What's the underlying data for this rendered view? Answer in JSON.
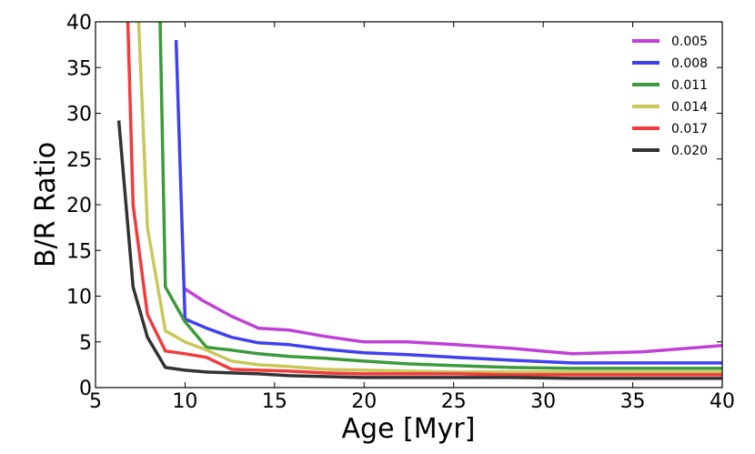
{
  "chart_data": {
    "type": "line",
    "title": "",
    "xlabel": "Age [Myr]",
    "ylabel": "B/R Ratio",
    "xlim": [
      5,
      40
    ],
    "ylim": [
      0,
      40
    ],
    "xticks": [
      5,
      10,
      15,
      20,
      25,
      30,
      35,
      40
    ],
    "yticks": [
      0,
      5,
      10,
      15,
      20,
      25,
      30,
      35,
      40
    ],
    "grid": false,
    "legend_position": "top-right",
    "series": [
      {
        "name": "0.005",
        "color": "#c040d8",
        "points": [
          [
            10,
            10.8
          ],
          [
            11,
            9.5
          ],
          [
            12.6,
            7.8
          ],
          [
            14.1,
            6.5
          ],
          [
            15.8,
            6.3
          ],
          [
            17.8,
            5.6
          ],
          [
            20,
            5.0
          ],
          [
            22.4,
            5.0
          ],
          [
            25.1,
            4.7
          ],
          [
            28.2,
            4.3
          ],
          [
            31.6,
            3.7
          ],
          [
            35.5,
            3.9
          ],
          [
            40,
            4.6
          ]
        ]
      },
      {
        "name": "0.008",
        "color": "#4040f0",
        "points": [
          [
            9.5,
            38
          ],
          [
            10,
            7.5
          ],
          [
            11.2,
            6.5
          ],
          [
            12.6,
            5.5
          ],
          [
            14.1,
            4.9
          ],
          [
            15.8,
            4.7
          ],
          [
            17.8,
            4.2
          ],
          [
            20,
            3.8
          ],
          [
            22.4,
            3.6
          ],
          [
            25.1,
            3.3
          ],
          [
            28.2,
            3.0
          ],
          [
            31.6,
            2.7
          ],
          [
            35.5,
            2.7
          ],
          [
            40,
            2.7
          ]
        ]
      },
      {
        "name": "0.011",
        "color": "#3c9a3c",
        "points": [
          [
            8.6,
            40.5
          ],
          [
            8.9,
            11
          ],
          [
            10,
            7.2
          ],
          [
            11.2,
            4.4
          ],
          [
            12.6,
            4.1
          ],
          [
            14.1,
            3.7
          ],
          [
            15.8,
            3.4
          ],
          [
            17.8,
            3.2
          ],
          [
            20,
            2.9
          ],
          [
            22.4,
            2.6
          ],
          [
            25.1,
            2.4
          ],
          [
            28.2,
            2.2
          ],
          [
            31.6,
            2.1
          ],
          [
            35.5,
            2.1
          ],
          [
            40,
            2.1
          ]
        ]
      },
      {
        "name": "0.014",
        "color": "#c8c85a",
        "points": [
          [
            7.4,
            40.5
          ],
          [
            7.9,
            17.5
          ],
          [
            8.9,
            6.2
          ],
          [
            10,
            5.0
          ],
          [
            11.2,
            4.1
          ],
          [
            12.6,
            2.9
          ],
          [
            14.1,
            2.5
          ],
          [
            15.8,
            2.3
          ],
          [
            17.8,
            2.0
          ],
          [
            20,
            1.9
          ],
          [
            22.4,
            1.8
          ],
          [
            25.1,
            1.7
          ],
          [
            28.2,
            1.7
          ],
          [
            31.6,
            1.7
          ],
          [
            35.5,
            1.7
          ],
          [
            40,
            1.7
          ]
        ]
      },
      {
        "name": "0.017",
        "color": "#f03c3c",
        "points": [
          [
            6.8,
            40.5
          ],
          [
            7.1,
            20
          ],
          [
            7.9,
            8.0
          ],
          [
            8.9,
            4.0
          ],
          [
            10,
            3.7
          ],
          [
            11.2,
            3.3
          ],
          [
            12.6,
            2.0
          ],
          [
            14.1,
            1.9
          ],
          [
            15.8,
            1.8
          ],
          [
            17.8,
            1.6
          ],
          [
            20,
            1.5
          ],
          [
            22.4,
            1.5
          ],
          [
            25.1,
            1.5
          ],
          [
            28.2,
            1.4
          ],
          [
            31.6,
            1.4
          ],
          [
            35.5,
            1.4
          ],
          [
            40,
            1.4
          ]
        ]
      },
      {
        "name": "0.020",
        "color": "#333333",
        "points": [
          [
            6.3,
            29.2
          ],
          [
            7.1,
            11
          ],
          [
            7.9,
            5.5
          ],
          [
            8.9,
            2.2
          ],
          [
            10,
            1.9
          ],
          [
            11.2,
            1.7
          ],
          [
            12.6,
            1.6
          ],
          [
            14.1,
            1.5
          ],
          [
            15.8,
            1.3
          ],
          [
            17.8,
            1.2
          ],
          [
            20,
            1.1
          ],
          [
            22.4,
            1.1
          ],
          [
            25.1,
            1.1
          ],
          [
            28.2,
            1.1
          ],
          [
            31.6,
            1.0
          ],
          [
            35.5,
            1.0
          ],
          [
            40,
            1.0
          ]
        ]
      }
    ]
  }
}
